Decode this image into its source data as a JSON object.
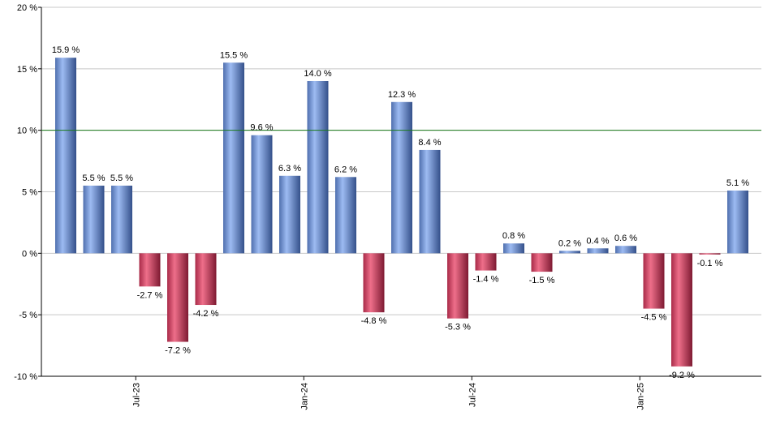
{
  "chart_data": {
    "type": "bar",
    "ylim": [
      -10,
      20
    ],
    "yticks": [
      -10,
      -5,
      0,
      5,
      10,
      15,
      20
    ],
    "ytick_labels": [
      "-10 %",
      "-5 %",
      "0 %",
      "5 %",
      "10 %",
      "15 %",
      "20 %"
    ],
    "reference_line": 10,
    "grid": true,
    "values": [
      15.9,
      5.5,
      5.5,
      -2.7,
      -7.2,
      -4.2,
      15.5,
      9.6,
      6.3,
      14.0,
      6.2,
      -4.8,
      12.3,
      8.4,
      -5.3,
      -1.4,
      0.8,
      -1.5,
      0.2,
      0.4,
      0.6,
      -4.5,
      -9.2,
      -0.1,
      5.1
    ],
    "value_labels": [
      "15.9 %",
      "5.5 %",
      "5.5 %",
      "-2.7 %",
      "-7.2 %",
      "-4.2 %",
      "15.5 %",
      "9.6 %",
      "6.3 %",
      "14.0 %",
      "6.2 %",
      "-4.8 %",
      "12.3 %",
      "8.4 %",
      "-5.3 %",
      "-1.4 %",
      "0.8 %",
      "-1.5 %",
      "0.2 %",
      "0.4 %",
      "0.6 %",
      "-4.5 %",
      "-9.2 %",
      "-0.1 %",
      "5.1 %"
    ],
    "xtick_labels": [
      {
        "label": "Jul-23",
        "index": 2.5
      },
      {
        "label": "Jan-24",
        "index": 8.5
      },
      {
        "label": "Jul-24",
        "index": 14.5
      },
      {
        "label": "Jan-25",
        "index": 20.5
      }
    ],
    "colors": {
      "positive": "#7a9fe0",
      "positive_dark": "#3c5a96",
      "negative": "#d84a68",
      "negative_dark": "#8e1e38",
      "reference_line": "#1a7a1a",
      "grid": "#c8c8c8"
    }
  }
}
